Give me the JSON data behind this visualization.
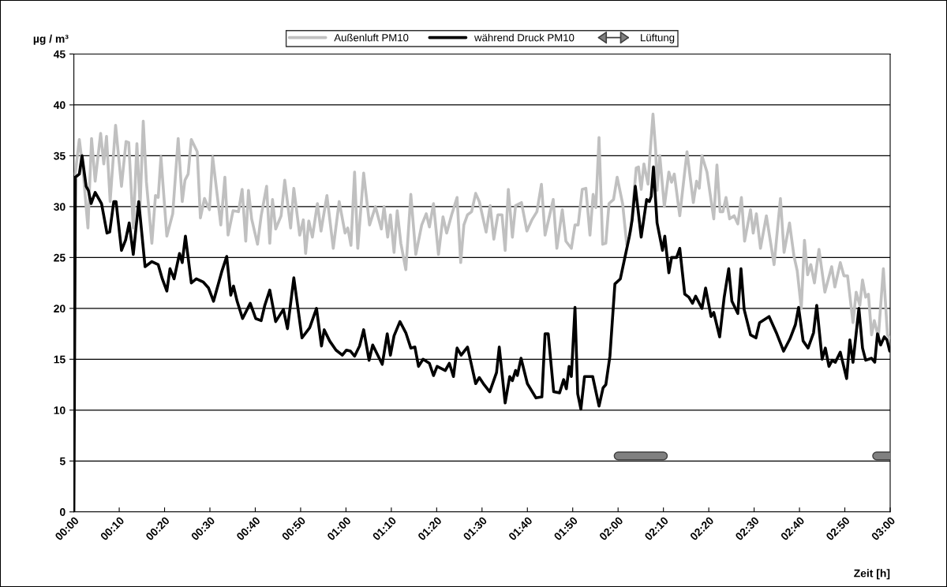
{
  "chart_data": {
    "type": "line",
    "ylabel": "µg / m³",
    "xlabel": "Zeit [h]",
    "xlim": [
      0,
      180
    ],
    "ylim": [
      0,
      45
    ],
    "xticks": [
      {
        "value": 0,
        "label": "00:00"
      },
      {
        "value": 10,
        "label": "00:10"
      },
      {
        "value": 20,
        "label": "00:20"
      },
      {
        "value": 30,
        "label": "00:30"
      },
      {
        "value": 40,
        "label": "00:40"
      },
      {
        "value": 50,
        "label": "00:50"
      },
      {
        "value": 60,
        "label": "01:00"
      },
      {
        "value": 70,
        "label": "01:10"
      },
      {
        "value": 80,
        "label": "01:20"
      },
      {
        "value": 90,
        "label": "01:30"
      },
      {
        "value": 100,
        "label": "01:40"
      },
      {
        "value": 110,
        "label": "01:50"
      },
      {
        "value": 120,
        "label": "02:00"
      },
      {
        "value": 130,
        "label": "02:10"
      },
      {
        "value": 140,
        "label": "02:20"
      },
      {
        "value": 150,
        "label": "02:30"
      },
      {
        "value": 160,
        "label": "02:40"
      },
      {
        "value": 170,
        "label": "02:50"
      },
      {
        "value": 180,
        "label": "03:00"
      }
    ],
    "yticks": [
      0,
      5,
      10,
      15,
      20,
      25,
      30,
      35,
      40,
      45
    ],
    "grid": "y",
    "legend": "top",
    "marker": "none",
    "line_style": "solid",
    "series": [
      {
        "name": "Außenluft PM10",
        "color": "#c0c0c0",
        "x": [
          0.3,
          1.2,
          2.0,
          3.1,
          3.9,
          4.7,
          5.9,
          6.6,
          7.2,
          8.0,
          9.2,
          10.5,
          11.5,
          12.1,
          13.1,
          13.9,
          14.6,
          15.3,
          16.0,
          17.2,
          18.0,
          18.6,
          19.2,
          20.5,
          21.8,
          23.0,
          23.9,
          24.5,
          25.2,
          25.9,
          27.2,
          27.9,
          28.8,
          29.9,
          30.6,
          32.4,
          33.3,
          34.0,
          35.1,
          36.3,
          37.1,
          37.9,
          38.5,
          39.2,
          40.5,
          41.3,
          42.5,
          43.2,
          43.8,
          44.5,
          45.7,
          46.5,
          47.8,
          48.5,
          49.8,
          50.6,
          51.1,
          51.8,
          52.6,
          53.7,
          54.5,
          55.8,
          57.2,
          58.5,
          59.8,
          60.4,
          61.1,
          61.9,
          62.6,
          63.9,
          65.2,
          66.5,
          67.8,
          68.4,
          69.2,
          69.8,
          70.6,
          71.3,
          72.1,
          73.2,
          74.3,
          75.4,
          76.7,
          77.7,
          78.4,
          79.3,
          80.4,
          81.4,
          82.2,
          83.3,
          84.5,
          85.3,
          86.0,
          86.8,
          87.7,
          88.6,
          89.4,
          90.9,
          91.8,
          92.6,
          93.5,
          94.4,
          95.1,
          95.8,
          96.7,
          97.4,
          98.7,
          99.9,
          101.0,
          102.1,
          103.1,
          103.9,
          105.7,
          106.5,
          107.7,
          108.5,
          109.7,
          110.5,
          111.2,
          112.1,
          112.9,
          113.8,
          114.5,
          115.1,
          115.8,
          116.6,
          117.3,
          118.0,
          119.0,
          119.8,
          121.0,
          121.9,
          122.8,
          124.0,
          124.5,
          125.1,
          125.7,
          126.6,
          127.1,
          127.7,
          128.3,
          128.6,
          129.2,
          130.2,
          131.2,
          131.8,
          132.4,
          133.6,
          135.2,
          136.6,
          137.3,
          137.9,
          138.5,
          139.6,
          141.1,
          141.8,
          142.5,
          143.1,
          143.8,
          144.6,
          145.6,
          146.4,
          147.2,
          147.9,
          149.2,
          149.8,
          150.5,
          151.4,
          152.7,
          154.4,
          155.8,
          156.6,
          157.8,
          158.8,
          159.5,
          160.4,
          161.1,
          161.8,
          162.5,
          163.3,
          164.3,
          165.6,
          167.1,
          167.8,
          169.0,
          169.8,
          170.6,
          171.8,
          172.5,
          173.3,
          173.9,
          174.6,
          175.2,
          175.9,
          176.5,
          177.4,
          178.5,
          179.4,
          179.9
        ],
        "values": [
          33.2,
          36.6,
          33.7,
          27.9,
          36.7,
          32.5,
          37.2,
          34.2,
          36.9,
          30.5,
          38.0,
          32.0,
          36.4,
          36.3,
          27.9,
          36.2,
          30.0,
          38.4,
          32.4,
          26.4,
          31.1,
          30.9,
          34.9,
          27.1,
          29.3,
          36.7,
          30.5,
          32.6,
          33.2,
          36.6,
          35.4,
          28.9,
          30.8,
          29.7,
          34.9,
          28.2,
          32.9,
          27.2,
          29.6,
          29.5,
          31.7,
          26.6,
          31.6,
          28.8,
          26.3,
          29.1,
          32.0,
          26.4,
          30.7,
          27.8,
          29.1,
          32.6,
          27.9,
          31.8,
          27.2,
          28.7,
          25.4,
          28.6,
          27.0,
          30.3,
          27.6,
          31.1,
          25.9,
          30.5,
          27.4,
          27.9,
          26.2,
          33.4,
          25.9,
          33.3,
          28.2,
          30.0,
          27.8,
          30.0,
          27.0,
          29.2,
          25.5,
          29.6,
          26.4,
          23.8,
          31.2,
          25.3,
          28.2,
          29.3,
          28.0,
          30.3,
          25.3,
          29.0,
          27.4,
          29.2,
          30.9,
          24.5,
          28.2,
          29.2,
          29.5,
          31.3,
          30.5,
          27.5,
          30.1,
          26.8,
          29.2,
          29.2,
          25.7,
          31.7,
          27.0,
          30.1,
          30.4,
          27.6,
          28.7,
          29.5,
          32.2,
          27.2,
          30.7,
          25.9,
          29.7,
          26.6,
          25.9,
          28.2,
          28.2,
          31.7,
          31.8,
          27.2,
          31.2,
          29.9,
          36.8,
          26.3,
          26.4,
          30.3,
          30.7,
          32.9,
          30.3,
          26.3,
          27.6,
          33.8,
          33.9,
          31.7,
          34.2,
          32.2,
          35.5,
          39.1,
          35.5,
          31.6,
          35.0,
          30.0,
          33.4,
          32.4,
          33.2,
          29.1,
          35.4,
          30.4,
          32.5,
          31.8,
          35.0,
          33.4,
          28.8,
          34.1,
          29.5,
          29.5,
          30.9,
          28.8,
          29.1,
          28.3,
          30.9,
          26.6,
          29.7,
          27.4,
          29.3,
          25.9,
          29.1,
          24.3,
          30.8,
          25.5,
          28.4,
          25.1,
          23.7,
          20.0,
          26.7,
          23.3,
          24.3,
          22.5,
          25.8,
          21.6,
          24.1,
          22.1,
          24.5,
          23.2,
          23.2,
          18.6,
          21.6,
          20.3,
          22.8,
          21.1,
          21.4,
          17.4,
          18.8,
          17.2,
          23.9,
          17.4,
          17.1
        ]
      },
      {
        "name": "während Druck PM10",
        "color": "#000000",
        "x": [
          0,
          0.35,
          1.2,
          1.8,
          2.7,
          3.2,
          3.8,
          4.7,
          6.1,
          7.3,
          7.9,
          8.8,
          9.3,
          10.5,
          11.4,
          12.2,
          13.1,
          14.3,
          15.7,
          17.2,
          18.6,
          19.5,
          20.5,
          21.2,
          22.1,
          23.3,
          23.9,
          24.6,
          25.9,
          27.0,
          28.5,
          29.7,
          30.8,
          32.6,
          33.7,
          34.6,
          35.2,
          36.0,
          37.2,
          38.9,
          40.1,
          41.3,
          42.1,
          43.2,
          44.5,
          46.2,
          47.1,
          48.5,
          50.3,
          52.0,
          53.5,
          54.6,
          55.2,
          56.4,
          57.8,
          59.2,
          60.1,
          61.0,
          61.9,
          63.0,
          63.9,
          65.1,
          65.9,
          68.0,
          69.1,
          69.8,
          70.6,
          71.9,
          73.2,
          74.3,
          75.2,
          76.0,
          77.0,
          78.4,
          79.3,
          80.1,
          81.9,
          82.8,
          83.7,
          84.5,
          85.4,
          86.8,
          88.6,
          89.4,
          90.3,
          91.7,
          93.2,
          93.8,
          95.1,
          96.1,
          96.7,
          97.4,
          97.8,
          98.6,
          100.0,
          101.9,
          103.2,
          103.9,
          104.6,
          105.8,
          107.1,
          108.0,
          108.6,
          109.2,
          109.7,
          110.5,
          111.1,
          111.8,
          112.6,
          114.4,
          115.8,
          116.7,
          117.3,
          118.2,
          119.3,
          120.5,
          122.5,
          123.1,
          123.8,
          125.1,
          126.3,
          126.9,
          127.3,
          127.8,
          128.6,
          129.8,
          130.3,
          131.2,
          131.8,
          132.9,
          133.6,
          134.7,
          135.6,
          136.4,
          137.1,
          138.5,
          139.3,
          140.5,
          141.1,
          142.4,
          143.4,
          144.4,
          145.1,
          146.4,
          147.1,
          147.8,
          149.2,
          150.4,
          151.2,
          153.3,
          155.0,
          156.5,
          157.9,
          159.1,
          159.8,
          160.8,
          161.9,
          163.1,
          163.8,
          165.0,
          165.7,
          166.5,
          167.2,
          167.9,
          169.0,
          170.4,
          171.1,
          171.8,
          173.1,
          173.9,
          174.6,
          175.9,
          176.6,
          177.2,
          177.9,
          178.7,
          179.3,
          179.9
        ],
        "values": [
          0,
          32.9,
          33.2,
          35.0,
          32.0,
          31.6,
          30.3,
          31.4,
          30.3,
          27.4,
          27.5,
          30.5,
          30.5,
          25.7,
          26.7,
          28.4,
          25.3,
          30.5,
          24.1,
          24.6,
          24.3,
          22.9,
          21.7,
          23.9,
          22.9,
          25.4,
          24.5,
          27.1,
          22.5,
          22.9,
          22.6,
          22.0,
          20.7,
          23.6,
          25.1,
          21.3,
          22.2,
          20.7,
          19.0,
          20.5,
          19.0,
          18.8,
          20.3,
          21.8,
          18.7,
          19.9,
          18.0,
          23.0,
          17.1,
          18.1,
          20.0,
          16.3,
          17.9,
          16.8,
          15.9,
          15.4,
          15.9,
          15.8,
          15.3,
          16.3,
          17.9,
          14.9,
          16.4,
          14.5,
          17.5,
          15.4,
          17.3,
          18.7,
          17.6,
          16.1,
          16.2,
          14.3,
          15.0,
          14.6,
          13.4,
          14.3,
          13.9,
          14.6,
          13.3,
          16.1,
          15.4,
          16.2,
          12.6,
          13.2,
          12.6,
          11.8,
          13.7,
          16.2,
          10.7,
          13.3,
          12.9,
          13.9,
          13.4,
          15.1,
          12.6,
          11.2,
          11.3,
          17.5,
          17.5,
          11.8,
          11.7,
          13.0,
          12.1,
          14.3,
          13.3,
          20.1,
          11.6,
          10.1,
          13.3,
          13.3,
          10.4,
          12.2,
          12.5,
          15.3,
          22.4,
          22.9,
          27.1,
          28.7,
          32.0,
          27.0,
          30.7,
          30.5,
          31.0,
          33.9,
          28.4,
          25.7,
          27.1,
          23.5,
          25.0,
          25.0,
          25.9,
          21.4,
          21.1,
          20.5,
          21.2,
          20.0,
          22.0,
          19.2,
          19.6,
          17.2,
          21.1,
          23.9,
          20.7,
          19.5,
          23.9,
          19.9,
          17.4,
          17.1,
          18.6,
          19.2,
          17.5,
          15.8,
          17.0,
          18.4,
          20.1,
          16.8,
          16.1,
          17.6,
          20.3,
          15.0,
          16.1,
          14.3,
          14.9,
          14.7,
          15.7,
          13.1,
          16.9,
          14.7,
          20.0,
          16.1,
          14.9,
          15.1,
          14.7,
          17.5,
          16.4,
          17.2,
          16.9,
          15.8
        ]
      },
      {
        "name": "Lüftung",
        "type": "line",
        "color": "#808080",
        "x": [
          120,
          130,
          null,
          177,
          180
        ],
        "values": [
          5.5,
          5.5,
          null,
          5.5,
          5.5
        ]
      }
    ]
  }
}
